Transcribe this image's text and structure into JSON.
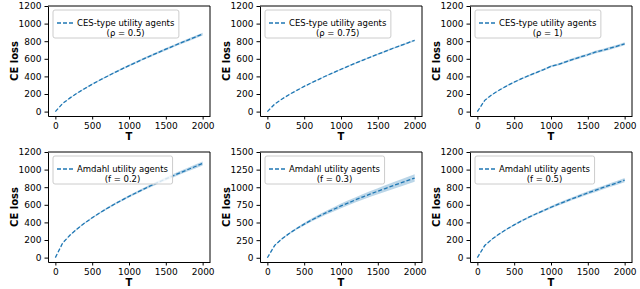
{
  "chart_data": [
    {
      "type": "line",
      "x_label": "T",
      "y_label": "CE loss",
      "x": [
        0,
        100,
        200,
        300,
        400,
        500,
        600,
        700,
        800,
        900,
        1000,
        1100,
        1200,
        1300,
        1400,
        1500,
        1600,
        1700,
        1800,
        1900,
        2000
      ],
      "xlim": [
        -100,
        2100
      ],
      "xticks": [
        0,
        500,
        1000,
        1500,
        2000
      ],
      "ylim": [
        -50,
        1200
      ],
      "yticks": [
        0,
        200,
        400,
        600,
        800,
        1000,
        1200
      ],
      "legend": "upper left",
      "series": [
        {
          "name": "CES-type utility agents\n(ρ = 0.5)",
          "color": "#1f77b4",
          "line_style": "dashed",
          "values": [
            0,
            93,
            156,
            212,
            263,
            311,
            356,
            399,
            442,
            483,
            523,
            561,
            600,
            637,
            673,
            709,
            744,
            779,
            813,
            847,
            880
          ],
          "error": [
            0,
            3,
            4,
            5,
            6,
            7,
            8,
            9,
            10,
            10,
            11,
            12,
            12,
            13,
            13,
            14,
            14,
            15,
            15,
            16,
            16
          ]
        }
      ]
    },
    {
      "type": "line",
      "x_label": "T",
      "y_label": "CE loss",
      "x": [
        0,
        100,
        200,
        300,
        400,
        500,
        600,
        700,
        800,
        900,
        1000,
        1100,
        1200,
        1300,
        1400,
        1500,
        1600,
        1700,
        1800,
        1900,
        2000
      ],
      "xlim": [
        -100,
        2100
      ],
      "xticks": [
        0,
        500,
        1000,
        1500,
        2000
      ],
      "ylim": [
        -50,
        1200
      ],
      "yticks": [
        0,
        200,
        400,
        600,
        800,
        1000,
        1200
      ],
      "legend": "upper left",
      "series": [
        {
          "name": "CES-type utility agents\n(ρ = 0.75)",
          "color": "#1f77b4",
          "line_style": "dashed",
          "values": [
            0,
            86,
            144,
            195,
            242,
            286,
            328,
            367,
            407,
            444,
            481,
            516,
            552,
            586,
            619,
            652,
            684,
            717,
            748,
            779,
            810
          ],
          "error": [
            0,
            2,
            3,
            4,
            4,
            5,
            5,
            6,
            6,
            7,
            7,
            7,
            8,
            8,
            8,
            9,
            9,
            9,
            10,
            10,
            10
          ]
        }
      ]
    },
    {
      "type": "line",
      "x_label": "T",
      "y_label": "CE loss",
      "x": [
        0,
        100,
        200,
        300,
        400,
        500,
        600,
        700,
        800,
        900,
        1000,
        1100,
        1200,
        1300,
        1400,
        1500,
        1600,
        1700,
        1800,
        1900,
        2000
      ],
      "xlim": [
        -100,
        2100
      ],
      "xticks": [
        0,
        500,
        1000,
        1500,
        2000
      ],
      "ylim": [
        -50,
        1200
      ],
      "yticks": [
        0,
        200,
        400,
        600,
        800,
        1000,
        1200
      ],
      "legend": "upper left",
      "series": [
        {
          "name": "CES-type utility agents\n(ρ = 1)",
          "color": "#1f77b4",
          "line_style": "dashed",
          "values": [
            0,
            128,
            193,
            246,
            293,
            335,
            374,
            410,
            444,
            477,
            515,
            535,
            566,
            594,
            621,
            646,
            676,
            696,
            720,
            744,
            770
          ],
          "error": [
            0,
            4,
            5,
            6,
            7,
            8,
            9,
            10,
            10,
            11,
            12,
            12,
            13,
            14,
            14,
            15,
            15,
            16,
            16,
            17,
            17
          ]
        }
      ]
    },
    {
      "type": "line",
      "x_label": "T",
      "y_label": "CE loss",
      "x": [
        0,
        100,
        200,
        300,
        400,
        500,
        600,
        700,
        800,
        900,
        1000,
        1100,
        1200,
        1300,
        1400,
        1500,
        1600,
        1700,
        1800,
        1900,
        2000
      ],
      "xlim": [
        -100,
        2100
      ],
      "xticks": [
        0,
        500,
        1000,
        1500,
        2000
      ],
      "ylim": [
        -50,
        1200
      ],
      "yticks": [
        0,
        200,
        400,
        600,
        800,
        1000,
        1200
      ],
      "legend": "upper left",
      "series": [
        {
          "name": "Amdahl utility agents\n(f = 0.2)",
          "color": "#1f77b4",
          "line_style": "dashed",
          "values": [
            0,
            167,
            256,
            329,
            394,
            452,
            507,
            558,
            606,
            651,
            696,
            738,
            779,
            819,
            857,
            894,
            930,
            966,
            1001,
            1035,
            1070
          ],
          "error": [
            0,
            3,
            5,
            6,
            7,
            8,
            9,
            10,
            11,
            12,
            13,
            14,
            15,
            16,
            17,
            18,
            19,
            20,
            21,
            22,
            23
          ]
        }
      ]
    },
    {
      "type": "line",
      "x_label": "T",
      "y_label": "CE loss",
      "x": [
        0,
        100,
        200,
        300,
        400,
        500,
        600,
        700,
        800,
        900,
        1000,
        1100,
        1200,
        1300,
        1400,
        1500,
        1600,
        1700,
        1800,
        1900,
        2000
      ],
      "xlim": [
        -100,
        2100
      ],
      "xticks": [
        0,
        500,
        1000,
        1500,
        2000
      ],
      "ylim": [
        -60,
        1500
      ],
      "yticks": [
        0,
        250,
        500,
        750,
        1000,
        1250,
        1500
      ],
      "legend": "upper left",
      "series": [
        {
          "name": "Amdahl utility agents\n(f = 0.3)",
          "color": "#1f77b4",
          "line_style": "dashed",
          "values": [
            0,
            176,
            270,
            347,
            416,
            477,
            535,
            589,
            640,
            687,
            735,
            779,
            823,
            865,
            905,
            944,
            982,
            1020,
            1057,
            1093,
            1130
          ],
          "error": [
            0,
            6,
            9,
            12,
            15,
            18,
            21,
            24,
            27,
            30,
            33,
            35,
            37,
            39,
            41,
            43,
            45,
            47,
            49,
            51,
            53
          ]
        }
      ]
    },
    {
      "type": "line",
      "x_label": "T",
      "y_label": "CE loss",
      "x": [
        0,
        100,
        200,
        300,
        400,
        500,
        600,
        700,
        800,
        900,
        1000,
        1100,
        1200,
        1300,
        1400,
        1500,
        1600,
        1700,
        1800,
        1900,
        2000
      ],
      "xlim": [
        -100,
        2100
      ],
      "xticks": [
        0,
        500,
        1000,
        1500,
        2000
      ],
      "ylim": [
        -50,
        1200
      ],
      "yticks": [
        0,
        200,
        400,
        600,
        800,
        1000,
        1200
      ],
      "legend": "upper left",
      "series": [
        {
          "name": "Amdahl utility agents\n(f = 0.5)",
          "color": "#1f77b4",
          "line_style": "dashed",
          "values": [
            0,
            137,
            210,
            270,
            324,
            372,
            417,
            459,
            498,
            535,
            572,
            607,
            640,
            673,
            704,
            735,
            764,
            794,
            823,
            851,
            880
          ],
          "error": [
            0,
            4,
            6,
            7,
            8,
            9,
            10,
            11,
            12,
            13,
            14,
            15,
            16,
            17,
            18,
            19,
            20,
            21,
            22,
            23,
            24
          ]
        }
      ]
    }
  ]
}
